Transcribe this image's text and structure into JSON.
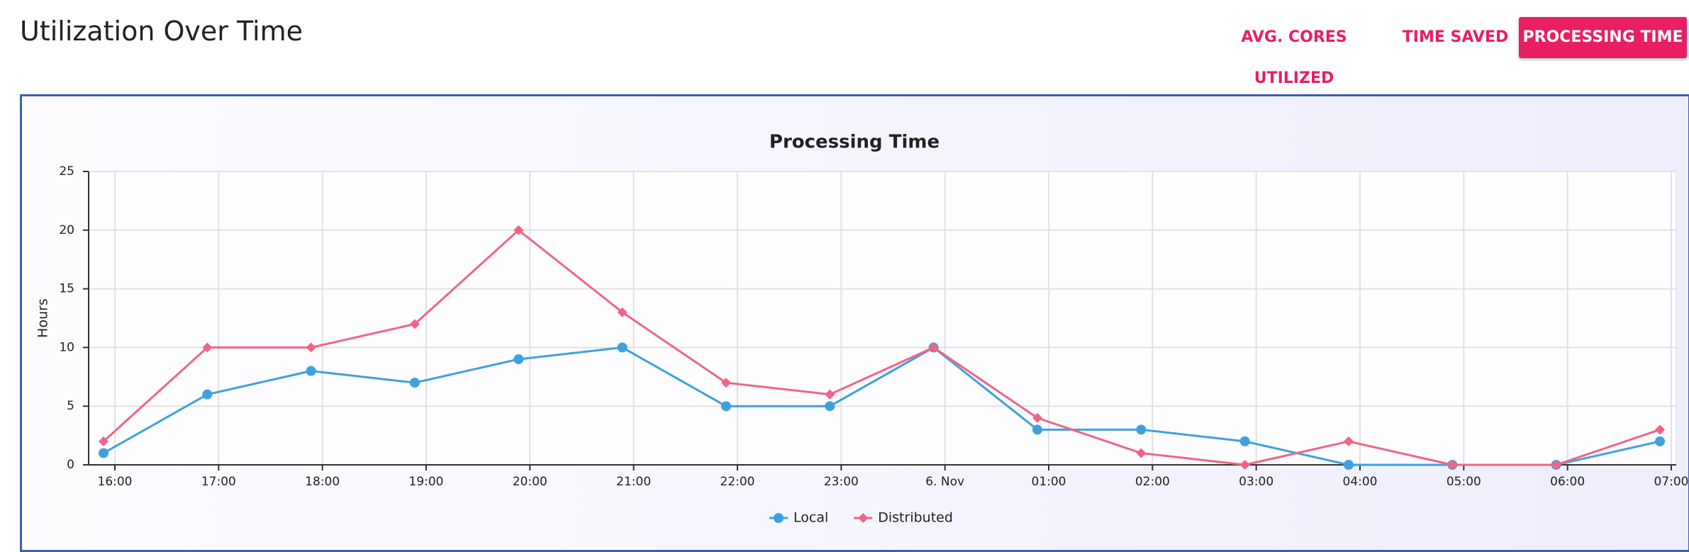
{
  "header": {
    "title": "Utilization Over Time",
    "tabs": [
      "AVG. CORES UTILIZED",
      "TIME SAVED",
      "PROCESSING TIME"
    ],
    "active_tab": 2
  },
  "chart_data": {
    "type": "line",
    "title": "Processing Time",
    "y_label": "Hours",
    "categories": [
      "16:00",
      "17:00",
      "18:00",
      "19:00",
      "20:00",
      "21:00",
      "22:00",
      "23:00",
      "6. Nov",
      "01:00",
      "02:00",
      "03:00",
      "04:00",
      "05:00",
      "06:00",
      "07:00"
    ],
    "series": [
      {
        "name": "Local",
        "color": "#3fa0e0",
        "marker": "circle",
        "values": [
          1,
          6,
          8,
          7,
          9,
          10,
          5,
          5,
          10,
          3,
          3,
          2,
          0,
          0,
          0,
          2
        ]
      },
      {
        "name": "Distributed",
        "color": "#f06584",
        "marker": "diamond",
        "values": [
          2,
          10,
          10,
          12,
          20,
          13,
          7,
          6,
          10,
          4,
          1,
          0,
          2,
          0,
          0,
          3
        ]
      }
    ],
    "ylim": [
      0,
      25
    ],
    "yticks": [
      0,
      5,
      10,
      15,
      20,
      25
    ],
    "grid": true,
    "legend": "bottom"
  }
}
